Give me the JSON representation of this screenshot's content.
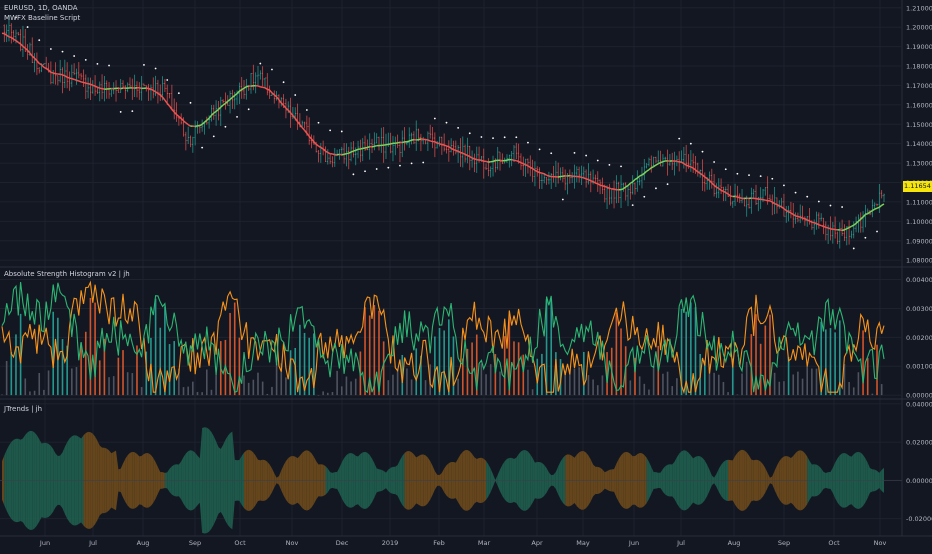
{
  "header": {
    "title": "EURUSD, 1D, OANDA",
    "indicator": "MWFX Baseline Script"
  },
  "panels": {
    "strength_title": "Absolute Strength Histogram v2 | jh",
    "trends_title": "JTrends | jh"
  },
  "last_price": "1.11654",
  "colors": {
    "background": "#131722",
    "grid": "#1e222d",
    "up_bar": "#26a69a",
    "down_bar": "#ef5350",
    "baseline_up": "#7cd45a",
    "baseline_down": "#ef5350",
    "ash_bull_line": "#2bb673",
    "ash_bear_line": "#f7931a",
    "trend_bull_fill": "#1f5f4f",
    "trend_bear_fill": "#6e4a1c",
    "price_badge": "#f5e50a"
  },
  "chart_data": [
    {
      "type": "candlestick",
      "title": "EURUSD, 1D, OANDA",
      "series": [
        {
          "name": "MWFX Baseline Script",
          "kind": "line"
        }
      ],
      "x": [
        "Jun",
        "Jul",
        "Aug",
        "Sep",
        "Oct",
        "Nov",
        "Dec",
        "2019",
        "Feb",
        "Mar",
        "Apr",
        "May",
        "Jun",
        "Jul",
        "Aug",
        "Sep",
        "Oct",
        "Nov"
      ],
      "y_ticks": [
        "1.21000",
        "1.20000",
        "1.19000",
        "1.18000",
        "1.17000",
        "1.16000",
        "1.15000",
        "1.14000",
        "1.13000",
        "1.12000",
        "1.11000",
        "1.10000",
        "1.09000",
        "1.08000"
      ],
      "ylim": [
        1.077,
        1.214
      ],
      "close_path": [
        [
          "May 2018",
          1.2
        ],
        [
          "May 2018",
          1.19
        ],
        [
          "May 2018",
          1.175
        ],
        [
          "Jun 2018",
          1.175
        ],
        [
          "Jun 2018",
          1.168
        ],
        [
          "Jul 2018",
          1.168
        ],
        [
          "Jul 2018",
          1.17
        ],
        [
          "Aug 2018",
          1.168
        ],
        [
          "Aug 2018",
          1.142
        ],
        [
          "Aug 2018",
          1.155
        ],
        [
          "Sep 2018",
          1.165
        ],
        [
          "Sep 2018",
          1.175
        ],
        [
          "Oct 2018",
          1.16
        ],
        [
          "Oct 2018",
          1.148
        ],
        [
          "Nov 2018",
          1.132
        ],
        [
          "Nov 2018",
          1.135
        ],
        [
          "Dec 2018",
          1.14
        ],
        [
          "Dec 2018",
          1.138
        ],
        [
          "Jan 2019",
          1.145
        ],
        [
          "Jan 2019",
          1.14
        ],
        [
          "Feb 2019",
          1.135
        ],
        [
          "Feb 2019",
          1.13
        ],
        [
          "Mar 2019",
          1.135
        ],
        [
          "Mar 2019",
          1.125
        ],
        [
          "Apr 2019",
          1.122
        ],
        [
          "Apr 2019",
          1.123
        ],
        [
          "May 2019",
          1.115
        ],
        [
          "May 2019",
          1.117
        ],
        [
          "Jun 2019",
          1.13
        ],
        [
          "Jun 2019",
          1.134
        ],
        [
          "Jul 2019",
          1.125
        ],
        [
          "Jul 2019",
          1.115
        ],
        [
          "Aug 2019",
          1.11
        ],
        [
          "Aug 2019",
          1.115
        ],
        [
          "Sep 2019",
          1.1
        ],
        [
          "Sep 2019",
          1.1
        ],
        [
          "Oct 2019",
          1.092
        ],
        [
          "Oct 2019",
          1.1
        ],
        [
          "Nov 2019",
          1.1165
        ]
      ]
    },
    {
      "type": "line",
      "title": "Absolute Strength Histogram v2 | jh",
      "y_ticks": [
        "0.00400",
        "0.00300",
        "0.00200",
        "0.00100",
        "0.00000"
      ],
      "ylim": [
        -0.0001,
        0.0044
      ],
      "series": [
        {
          "name": "bull",
          "style": "line"
        },
        {
          "name": "bear",
          "style": "line"
        },
        {
          "name": "histogram",
          "style": "bar"
        }
      ]
    },
    {
      "type": "area",
      "title": "JTrends | jh",
      "y_ticks": [
        "0.04000",
        "0.02000",
        "0.00000",
        "-0.02000"
      ],
      "ylim": [
        -0.028,
        0.042
      ],
      "series": [
        {
          "name": "bull",
          "style": "area"
        },
        {
          "name": "bear",
          "style": "area"
        }
      ]
    }
  ]
}
